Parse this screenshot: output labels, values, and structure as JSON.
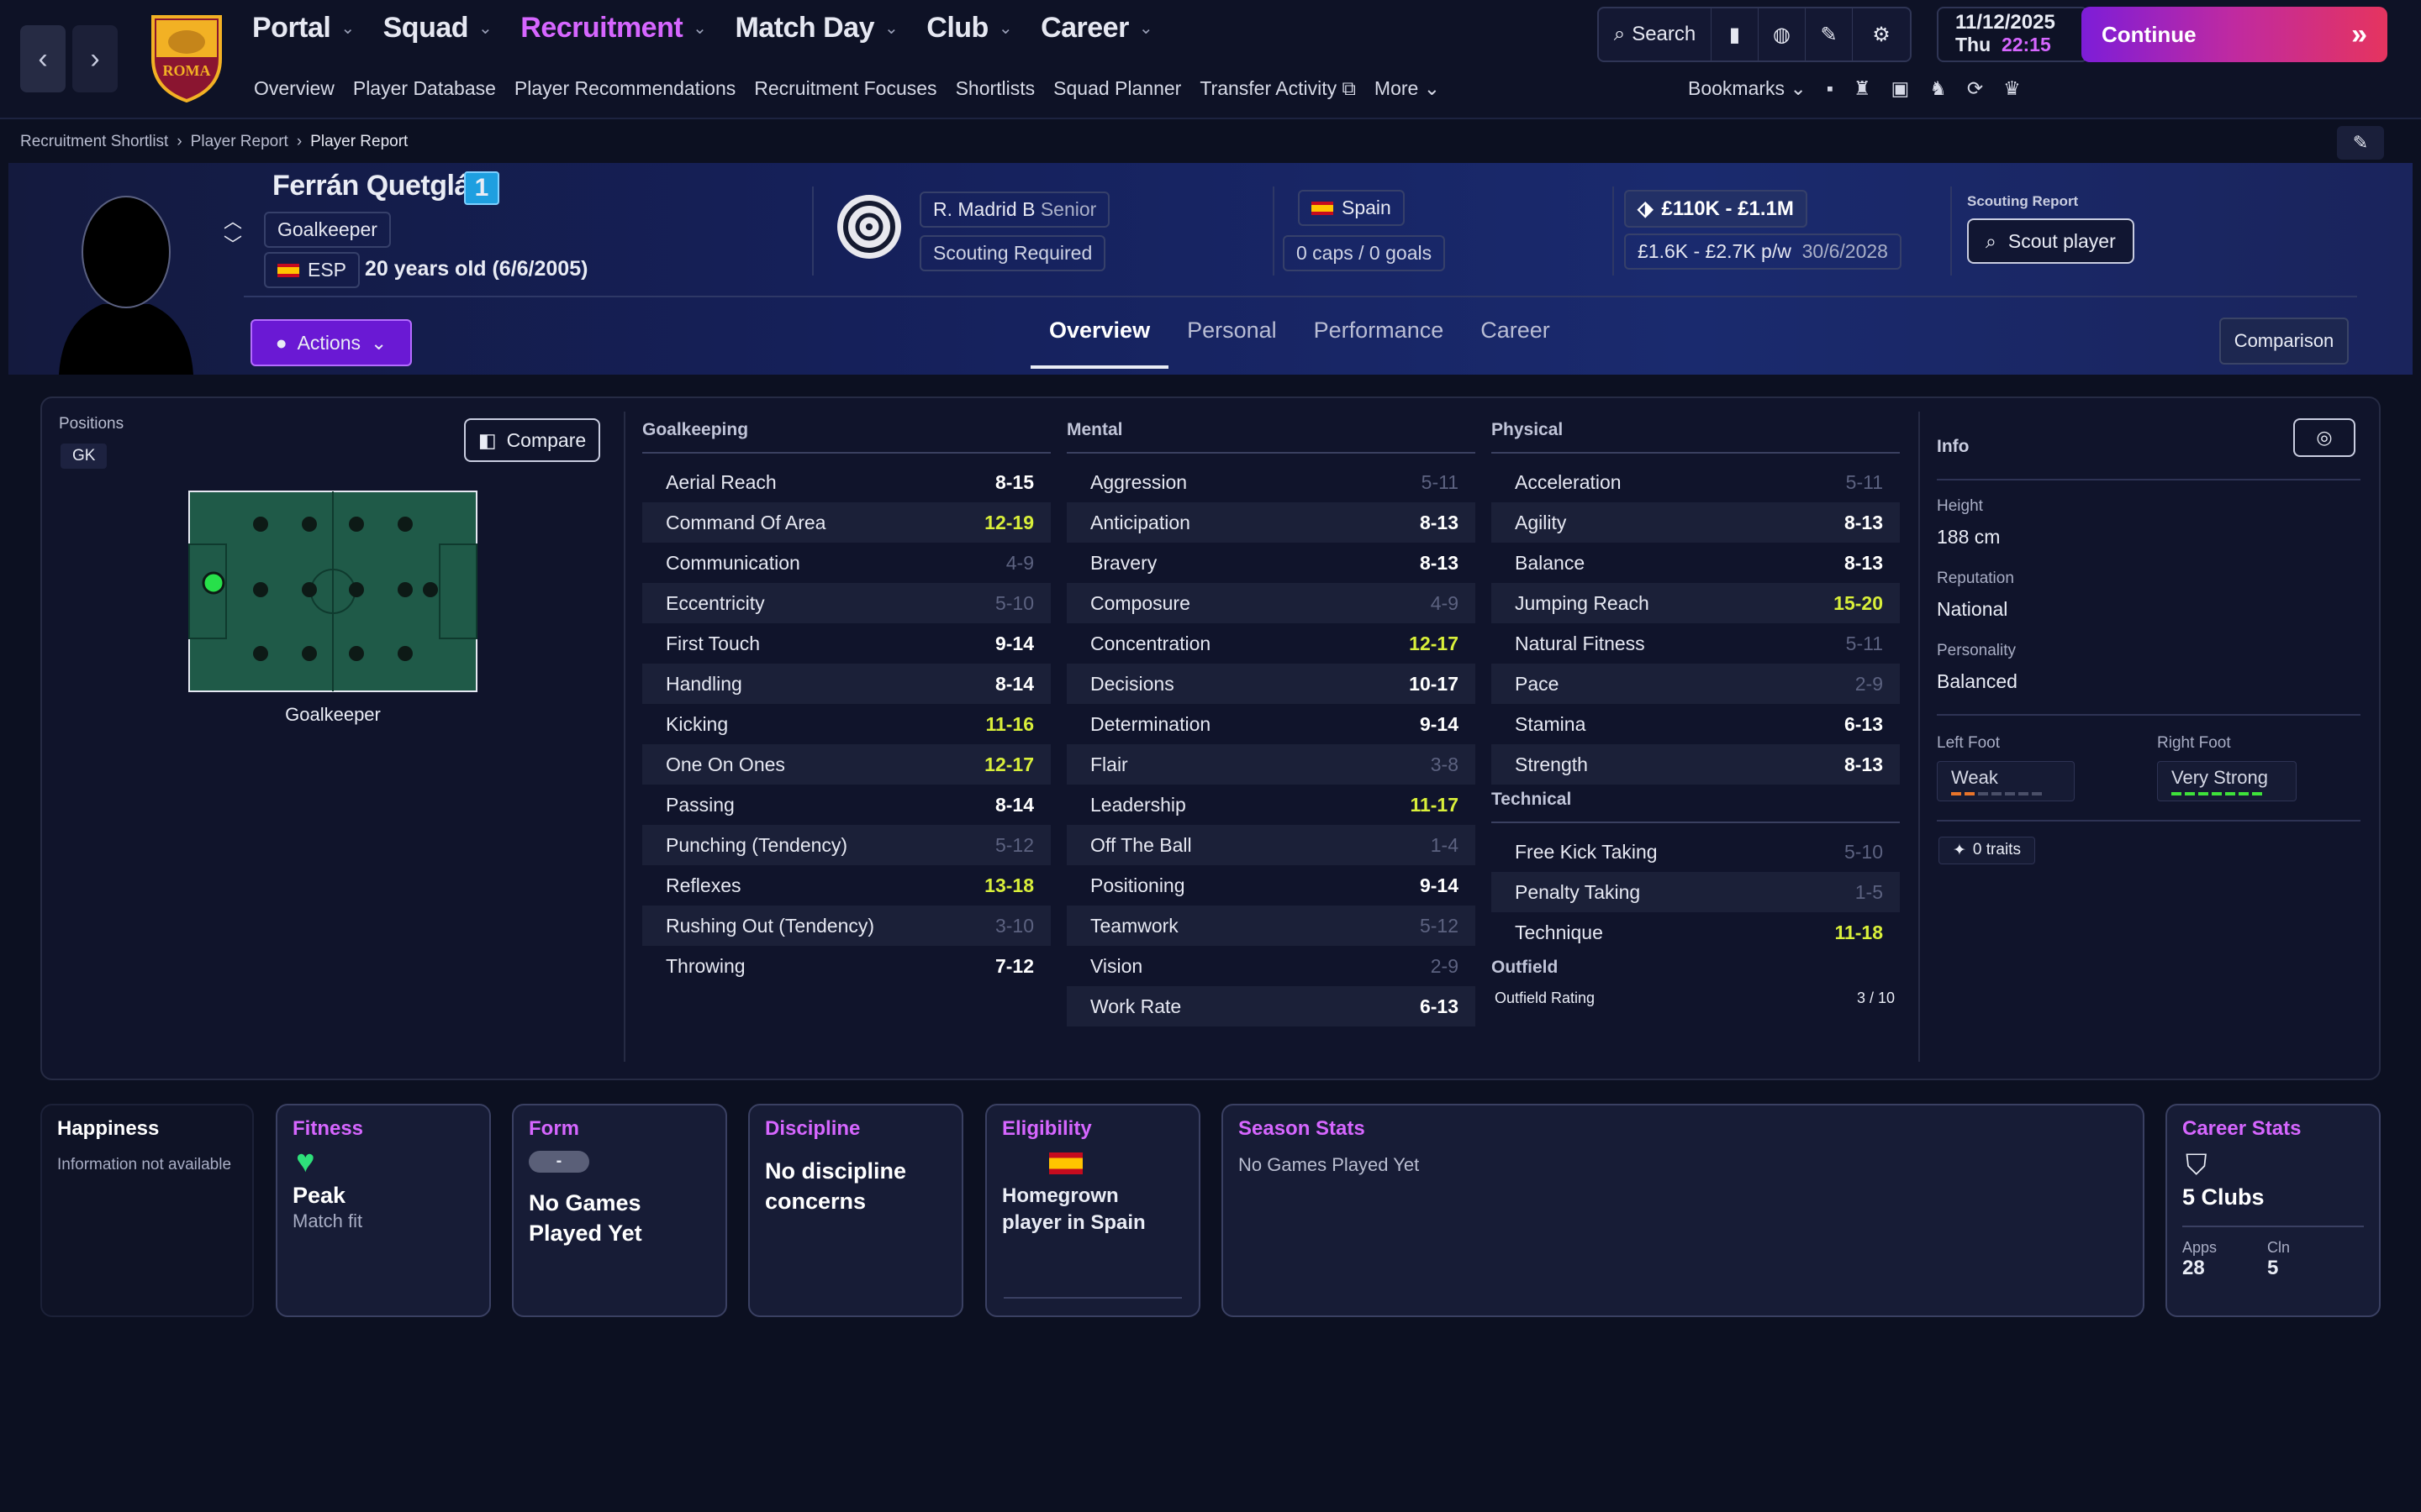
{
  "nav": {
    "menu": [
      {
        "label": "Portal",
        "active": false
      },
      {
        "label": "Squad",
        "active": false
      },
      {
        "label": "Recruitment",
        "active": true
      },
      {
        "label": "Match Day",
        "active": false
      },
      {
        "label": "Club",
        "active": false
      },
      {
        "label": "Career",
        "active": false
      }
    ],
    "submenu": [
      "Overview",
      "Player Database",
      "Player Recommendations",
      "Recruitment Focuses",
      "Shortlists",
      "Squad Planner",
      "Transfer Activity",
      "More"
    ],
    "search_label": "Search",
    "date": "11/12/2025",
    "day": "Thu",
    "time": "22:15",
    "continue_label": "Continue",
    "bookmarks_label": "Bookmarks",
    "club_badge_text": "ROMA"
  },
  "breadcrumb": [
    "Recruitment Shortlist",
    "Player Report",
    "Player Report"
  ],
  "player": {
    "name": "Ferrán Quetglás",
    "number": "1",
    "position": "Goalkeeper",
    "nation_code": "ESP",
    "age": "20 years old (6/6/2005)",
    "club": "R. Madrid B",
    "squad": "Senior",
    "scouting_status": "Scouting Required",
    "nation": "Spain",
    "caps": "0 caps / 0 goals",
    "value": "£110K - £1.1M",
    "wage": "£1.6K - £2.7K p/w",
    "contract": "30/6/2028",
    "scouting_report_label": "Scouting Report",
    "scout_button": "Scout player",
    "actions_label": "Actions",
    "comparison_label": "Comparison"
  },
  "tabs": [
    {
      "label": "Overview",
      "active": true
    },
    {
      "label": "Personal",
      "active": false
    },
    {
      "label": "Performance",
      "active": false
    },
    {
      "label": "Career",
      "active": false
    }
  ],
  "positions": {
    "label": "Positions",
    "badge": "GK",
    "compare_label": "Compare",
    "pitch_caption": "Goalkeeper"
  },
  "goalkeeping": {
    "title": "Goalkeeping",
    "rows": [
      {
        "name": "Aerial Reach",
        "value": "8-15",
        "style": "normal"
      },
      {
        "name": "Command Of Area",
        "value": "12-19",
        "style": "hi"
      },
      {
        "name": "Communication",
        "value": "4-9",
        "style": "dim"
      },
      {
        "name": "Eccentricity",
        "value": "5-10",
        "style": "dim"
      },
      {
        "name": "First Touch",
        "value": "9-14",
        "style": "normal"
      },
      {
        "name": "Handling",
        "value": "8-14",
        "style": "normal"
      },
      {
        "name": "Kicking",
        "value": "11-16",
        "style": "hi"
      },
      {
        "name": "One On Ones",
        "value": "12-17",
        "style": "hi"
      },
      {
        "name": "Passing",
        "value": "8-14",
        "style": "normal"
      },
      {
        "name": "Punching (Tendency)",
        "value": "5-12",
        "style": "dim"
      },
      {
        "name": "Reflexes",
        "value": "13-18",
        "style": "hi"
      },
      {
        "name": "Rushing Out (Tendency)",
        "value": "3-10",
        "style": "dim"
      },
      {
        "name": "Throwing",
        "value": "7-12",
        "style": "normal"
      }
    ]
  },
  "mental": {
    "title": "Mental",
    "rows": [
      {
        "name": "Aggression",
        "value": "5-11",
        "style": "dim"
      },
      {
        "name": "Anticipation",
        "value": "8-13",
        "style": "normal"
      },
      {
        "name": "Bravery",
        "value": "8-13",
        "style": "normal"
      },
      {
        "name": "Composure",
        "value": "4-9",
        "style": "dim"
      },
      {
        "name": "Concentration",
        "value": "12-17",
        "style": "hi"
      },
      {
        "name": "Decisions",
        "value": "10-17",
        "style": "normal"
      },
      {
        "name": "Determination",
        "value": "9-14",
        "style": "normal"
      },
      {
        "name": "Flair",
        "value": "3-8",
        "style": "dim"
      },
      {
        "name": "Leadership",
        "value": "11-17",
        "style": "hi"
      },
      {
        "name": "Off The Ball",
        "value": "1-4",
        "style": "dim"
      },
      {
        "name": "Positioning",
        "value": "9-14",
        "style": "normal"
      },
      {
        "name": "Teamwork",
        "value": "5-12",
        "style": "dim"
      },
      {
        "name": "Vision",
        "value": "2-9",
        "style": "dim"
      },
      {
        "name": "Work Rate",
        "value": "6-13",
        "style": "normal"
      }
    ]
  },
  "physical": {
    "title": "Physical",
    "rows": [
      {
        "name": "Acceleration",
        "value": "5-11",
        "style": "dim"
      },
      {
        "name": "Agility",
        "value": "8-13",
        "style": "normal"
      },
      {
        "name": "Balance",
        "value": "8-13",
        "style": "normal"
      },
      {
        "name": "Jumping Reach",
        "value": "15-20",
        "style": "hi"
      },
      {
        "name": "Natural Fitness",
        "value": "5-11",
        "style": "dim"
      },
      {
        "name": "Pace",
        "value": "2-9",
        "style": "dim"
      },
      {
        "name": "Stamina",
        "value": "6-13",
        "style": "normal"
      },
      {
        "name": "Strength",
        "value": "8-13",
        "style": "normal"
      }
    ]
  },
  "technical": {
    "title": "Technical",
    "rows": [
      {
        "name": "Free Kick Taking",
        "value": "5-10",
        "style": "dim"
      },
      {
        "name": "Penalty Taking",
        "value": "1-5",
        "style": "dim"
      },
      {
        "name": "Technique",
        "value": "11-18",
        "style": "hi"
      }
    ]
  },
  "outfield": {
    "title": "Outfield",
    "label": "Outfield Rating",
    "value": "3 / 10"
  },
  "info": {
    "title": "Info",
    "height_label": "Height",
    "height": "188 cm",
    "reputation_label": "Reputation",
    "reputation": "National",
    "personality_label": "Personality",
    "personality": "Balanced",
    "left_foot_label": "Left Foot",
    "left_foot": "Weak",
    "left_foot_level": 2,
    "right_foot_label": "Right Foot",
    "right_foot": "Very Strong",
    "right_foot_level": 7,
    "traits": "0 traits"
  },
  "cards": {
    "happiness_title": "Happiness",
    "happiness_text": "Information not available",
    "fitness_title": "Fitness",
    "fitness_value": "Peak",
    "fitness_sub": "Match fit",
    "form_title": "Form",
    "form_badge": "-",
    "form_text": "No Games Played Yet",
    "discipline_title": "Discipline",
    "discipline_text": "No discipline concerns",
    "eligibility_title": "Eligibility",
    "eligibility_text": "Homegrown player in Spain",
    "season_title": "Season Stats",
    "season_text": "No Games Played Yet",
    "career_title": "Career Stats",
    "career_clubs": "5 Clubs",
    "apps_label": "Apps",
    "apps": "28",
    "cln_label": "Cln",
    "cln": "5"
  },
  "colors": {
    "accent": "#d666ff",
    "highlight": "#d9ef3a",
    "pitch": "#1f5a48"
  }
}
